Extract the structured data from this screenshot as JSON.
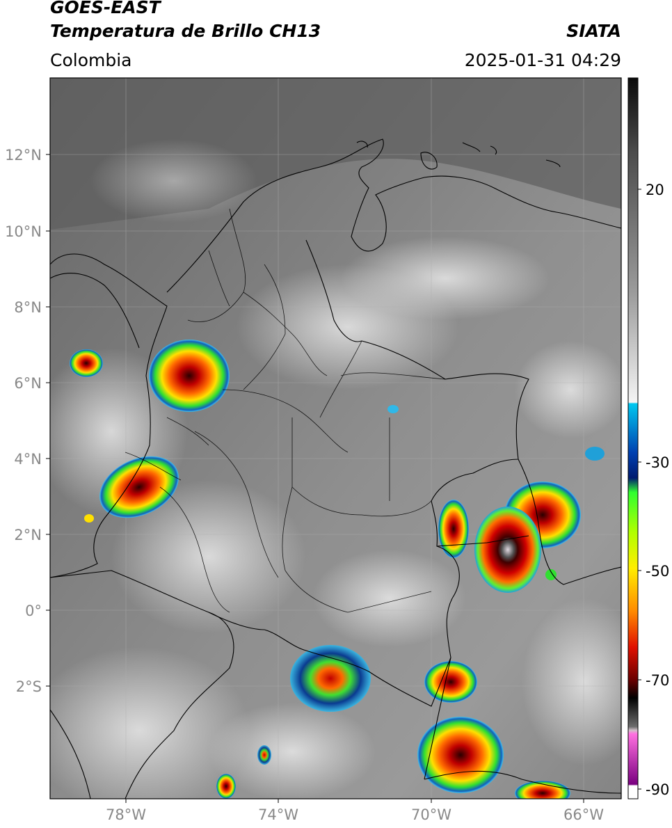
{
  "header": {
    "satellite": "GOES-EAST",
    "product": "Temperatura de Brillo CH13",
    "source": "SIATA",
    "region": "Colombia",
    "timestamp": "2025-01-31 04:29"
  },
  "axes": {
    "lat_ticks": [
      "12°N",
      "10°N",
      "8°N",
      "6°N",
      "4°N",
      "2°N",
      "0°",
      "2°S"
    ],
    "lon_ticks": [
      "78°W",
      "74°W",
      "70°W",
      "66°W"
    ]
  },
  "colorbar": {
    "labels": [
      "20",
      "-30",
      "-50",
      "-70",
      "-90"
    ],
    "stops": [
      {
        "v": 0.0,
        "c": "#0a0a0a"
      },
      {
        "v": 0.1,
        "c": "#4a4a4a"
      },
      {
        "v": 0.3,
        "c": "#9c9c9c"
      },
      {
        "v": 0.45,
        "c": "#f4f4f4"
      },
      {
        "v": 0.452,
        "c": "#00c8f0"
      },
      {
        "v": 0.52,
        "c": "#0040b0"
      },
      {
        "v": 0.555,
        "c": "#001a70"
      },
      {
        "v": 0.575,
        "c": "#30ff30"
      },
      {
        "v": 0.63,
        "c": "#b0ff00"
      },
      {
        "v": 0.68,
        "c": "#ffee00"
      },
      {
        "v": 0.74,
        "c": "#ff8a00"
      },
      {
        "v": 0.79,
        "c": "#e01000"
      },
      {
        "v": 0.835,
        "c": "#6a0000"
      },
      {
        "v": 0.86,
        "c": "#000000"
      },
      {
        "v": 0.9,
        "c": "#6c6c6c"
      },
      {
        "v": 0.905,
        "c": "#d0c0c8"
      },
      {
        "v": 0.91,
        "c": "#ff70e0"
      },
      {
        "v": 0.98,
        "c": "#7a0080"
      },
      {
        "v": 0.982,
        "c": "#ffffff"
      },
      {
        "v": 1.0,
        "c": "#ffffff"
      }
    ]
  }
}
